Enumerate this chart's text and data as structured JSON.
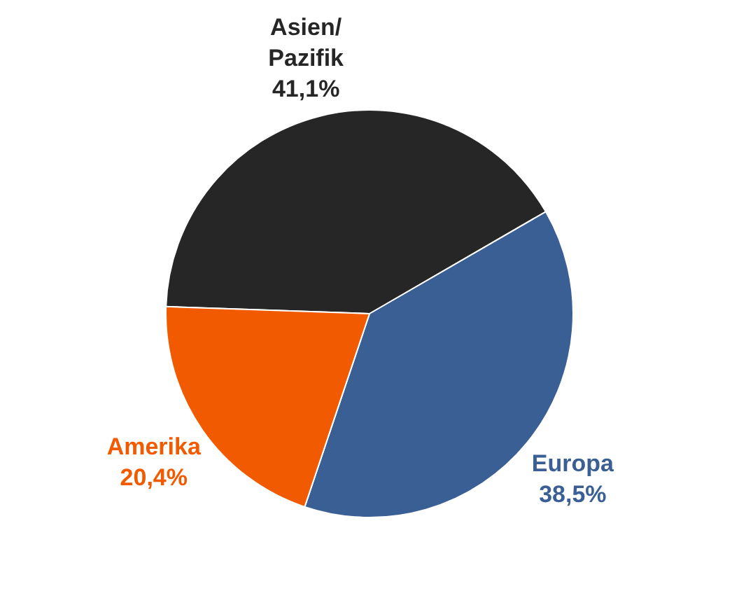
{
  "chart_data": {
    "type": "pie",
    "categories": [
      "Asien/\nPazifik",
      "Europa",
      "Amerika"
    ],
    "values": [
      41.1,
      38.5,
      20.4
    ],
    "colors": [
      "#262626",
      "#3a5f94",
      "#f25a00"
    ],
    "value_labels": [
      "41,1%",
      "38,5%",
      "20,4%"
    ],
    "legend": false
  }
}
